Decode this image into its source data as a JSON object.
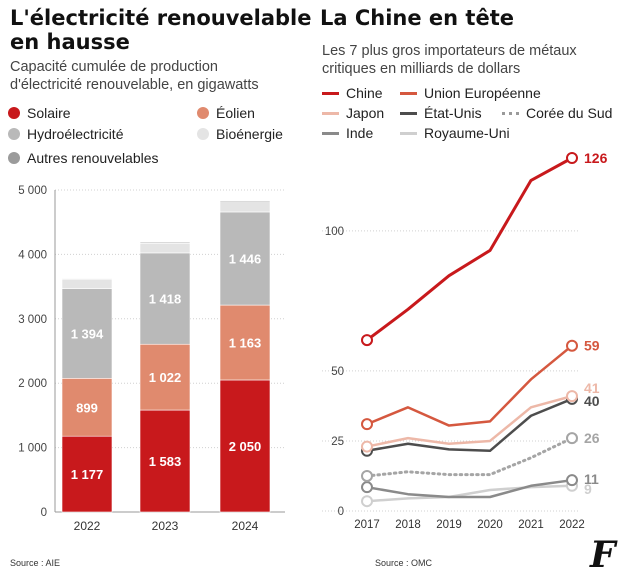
{
  "left": {
    "title_line1": "L'électricité renouvelable",
    "title_line2": "en hausse",
    "subtitle_line1": "Capacité cumulée de production",
    "subtitle_line2": "d'électricité renouvelable, en gigawatts",
    "source": "Source : AIE"
  },
  "right": {
    "title": "La Chine en tête",
    "subtitle_line1": "Les 7 plus gros importateurs de métaux",
    "subtitle_line2": "critiques en milliards de dollars",
    "source": "Source : OMC"
  },
  "logo": "F",
  "chart_data": [
    {
      "type": "bar",
      "stacked": true,
      "categories": [
        "2022",
        "2023",
        "2024"
      ],
      "ylim": [
        0,
        5000
      ],
      "yticks": [
        0,
        1000,
        2000,
        3000,
        4000,
        5000
      ],
      "ytick_labels": [
        "0",
        "1 000",
        "2 000",
        "3 000",
        "4 000",
        "5 000"
      ],
      "series": [
        {
          "name": "Solaire",
          "color": "#c8191c",
          "values": [
            1177,
            1583,
            2050
          ],
          "labels": [
            "1 177",
            "1 583",
            "2 050"
          ]
        },
        {
          "name": "Éolien",
          "color": "#e08a6e",
          "values": [
            899,
            1022,
            1163
          ],
          "labels": [
            "899",
            "1 022",
            "1 163"
          ]
        },
        {
          "name": "Hydroélectricité",
          "color": "#b9b9b9",
          "values": [
            1394,
            1418,
            1446
          ],
          "labels": [
            "1 394",
            "1 418",
            "1 446"
          ]
        },
        {
          "name": "Bioénergie",
          "color": "#e4e4e4",
          "values": [
            145,
            150,
            160
          ]
        },
        {
          "name": "Autres renouvelables",
          "color": "#9b9b9b",
          "values": [
            10,
            15,
            15
          ]
        }
      ]
    },
    {
      "type": "line",
      "x": [
        2017,
        2018,
        2019,
        2020,
        2021,
        2022
      ],
      "ylim": [
        0,
        126
      ],
      "yticks": [
        0,
        25,
        50,
        100
      ],
      "series": [
        {
          "name": "Chine",
          "color": "#c8191c",
          "values": [
            61,
            72,
            84,
            93,
            118,
            126
          ],
          "end_label": "126"
        },
        {
          "name": "Union Européenne",
          "color": "#d5583f",
          "values": [
            31,
            37,
            30.5,
            32,
            47,
            59
          ],
          "end_label": "59"
        },
        {
          "name": "Japon",
          "color": "#edb8a8",
          "values": [
            23,
            26,
            24,
            25,
            37,
            41
          ],
          "end_label": "41"
        },
        {
          "name": "État-Unis",
          "color": "#4d4d4d",
          "values": [
            21.5,
            24,
            22,
            21.5,
            34,
            40
          ],
          "end_label": "40"
        },
        {
          "name": "Corée du Sud",
          "color": "#a5a5a5",
          "dashed": true,
          "values": [
            12.5,
            14,
            13,
            13,
            19,
            26
          ],
          "end_label": "26"
        },
        {
          "name": "Inde",
          "color": "#8a8a8a",
          "values": [
            8.5,
            6,
            5,
            5,
            9,
            11
          ],
          "end_label": "11"
        },
        {
          "name": "Royaume-Uni",
          "color": "#cfcfcf",
          "values": [
            3.5,
            4.5,
            5,
            7.5,
            8.5,
            9
          ],
          "end_label": "9"
        }
      ]
    }
  ]
}
